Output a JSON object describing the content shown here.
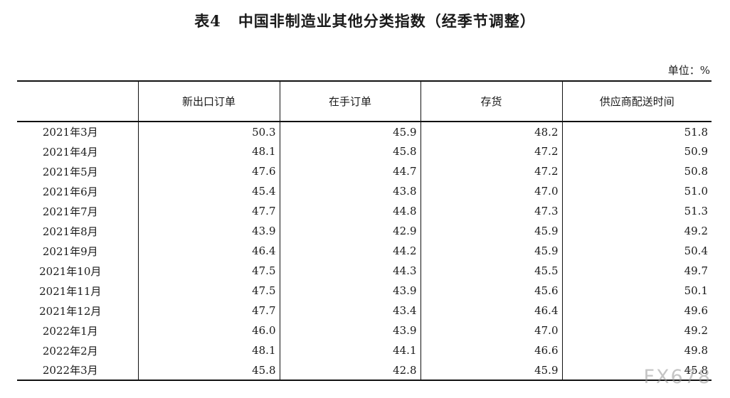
{
  "title": {
    "number": "表4",
    "text": "中国非制造业其他分类指数（经季节调整）"
  },
  "unit_label": "单位：%",
  "table": {
    "headers": [
      "",
      "新出口订单",
      "在手订单",
      "存货",
      "供应商配送时间"
    ],
    "rows": [
      [
        "2021年3月",
        "50.3",
        "45.9",
        "48.2",
        "51.8"
      ],
      [
        "2021年4月",
        "48.1",
        "45.8",
        "47.2",
        "50.9"
      ],
      [
        "2021年5月",
        "47.6",
        "44.7",
        "47.2",
        "50.8"
      ],
      [
        "2021年6月",
        "45.4",
        "43.8",
        "47.0",
        "51.0"
      ],
      [
        "2021年7月",
        "47.7",
        "44.8",
        "47.3",
        "51.3"
      ],
      [
        "2021年8月",
        "43.9",
        "42.9",
        "45.9",
        "49.2"
      ],
      [
        "2021年9月",
        "46.4",
        "44.2",
        "45.9",
        "50.4"
      ],
      [
        "2021年10月",
        "47.5",
        "44.3",
        "45.5",
        "49.7"
      ],
      [
        "2021年11月",
        "47.5",
        "43.9",
        "45.6",
        "50.1"
      ],
      [
        "2021年12月",
        "47.7",
        "43.4",
        "46.4",
        "49.6"
      ],
      [
        "2022年1月",
        "46.0",
        "43.9",
        "47.0",
        "49.2"
      ],
      [
        "2022年2月",
        "48.1",
        "44.1",
        "46.6",
        "49.8"
      ],
      [
        "2022年3月",
        "45.8",
        "42.8",
        "45.9",
        "45.8"
      ]
    ]
  },
  "watermark": "FX678"
}
